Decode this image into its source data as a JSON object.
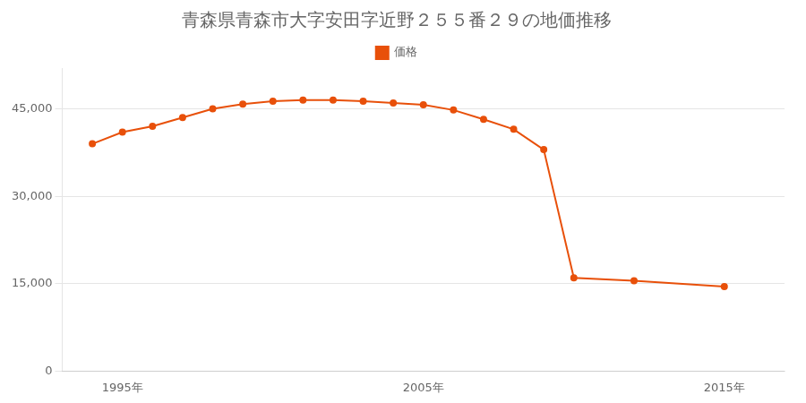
{
  "chart_data": {
    "type": "line",
    "title": "青森県青森市大字安田字近野２５５番２９の地価推移",
    "x": [
      1994,
      1995,
      1996,
      1997,
      1998,
      1999,
      2000,
      2001,
      2002,
      2003,
      2004,
      2005,
      2006,
      2007,
      2008,
      2009,
      2010,
      2012,
      2015
    ],
    "series": [
      {
        "name": "価格",
        "color": "#e8500a",
        "marker": "circle",
        "values": [
          39000,
          41000,
          42000,
          43500,
          45000,
          45800,
          46300,
          46500,
          46500,
          46300,
          46000,
          45700,
          44800,
          43200,
          41500,
          38000,
          16000,
          15500,
          14500
        ]
      }
    ],
    "xlim": [
      1993,
      2017
    ],
    "xticks": [
      {
        "value": 1995,
        "label": "1995年"
      },
      {
        "value": 2005,
        "label": "2005年"
      },
      {
        "value": 2015,
        "label": "2015年"
      }
    ],
    "ylim": [
      0,
      52000
    ],
    "yticks": [
      0,
      {
        "value": 15000,
        "label": "15,000"
      },
      {
        "value": 30000,
        "label": "30,000"
      },
      {
        "value": 45000,
        "label": "45,000"
      }
    ],
    "grid": "y",
    "legend": "top"
  }
}
